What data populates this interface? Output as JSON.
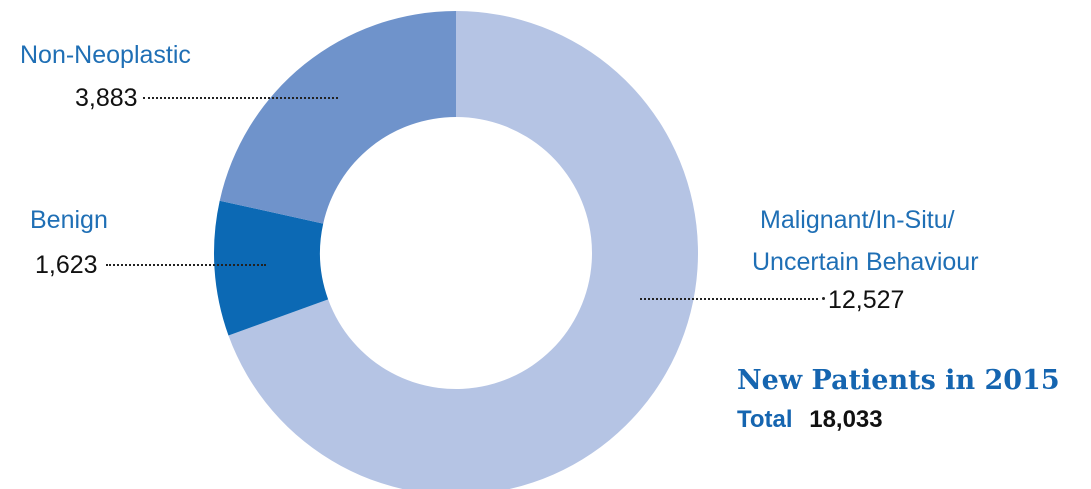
{
  "chart_data": {
    "type": "pie",
    "donut": true,
    "labels": [
      "Malignant/In-Situ/ Uncertain Behaviour",
      "Benign",
      "Non-Neoplastic"
    ],
    "values": [
      12527,
      1623,
      3883
    ],
    "value_labels": [
      "12,527",
      "1,623",
      "3,883"
    ],
    "colors": [
      "#b5c4e4",
      "#0c69b4",
      "#6f93cb"
    ],
    "start": "top",
    "direction": "clockwise"
  },
  "labels": {
    "non_neoplastic": {
      "name": "Non-Neoplastic",
      "value": "3,883"
    },
    "benign": {
      "name": "Benign",
      "value": "1,623"
    },
    "malignant": {
      "name_line1": "Malignant/In-Situ/",
      "name_line2": "Uncertain Behaviour",
      "value": "12,527"
    }
  },
  "summary": {
    "headline": "New Patients in 2015",
    "total_label": "Total",
    "total_value": "18,033"
  }
}
